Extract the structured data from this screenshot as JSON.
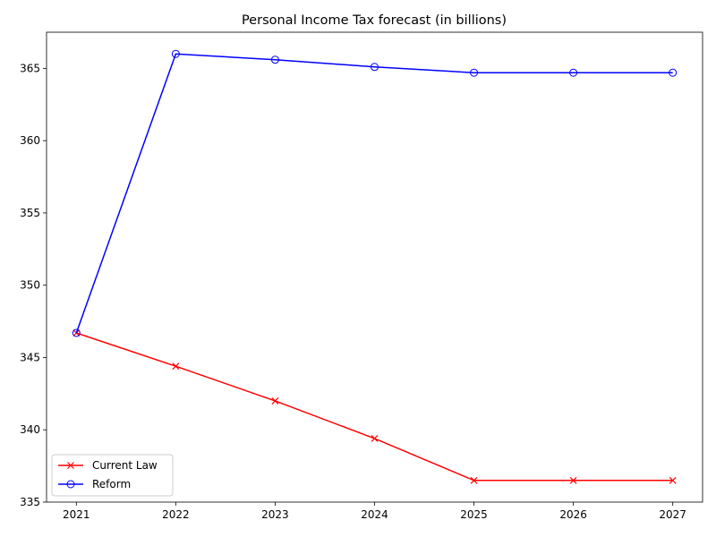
{
  "chart_data": {
    "type": "line",
    "title": "Personal Income Tax forecast (in billions)",
    "xlabel": "",
    "ylabel": "",
    "x": [
      2021,
      2022,
      2023,
      2024,
      2025,
      2026,
      2027
    ],
    "xlim": [
      2020.7,
      2027.3
    ],
    "ylim": [
      335,
      367.5
    ],
    "yticks": [
      335,
      340,
      345,
      350,
      355,
      360,
      365
    ],
    "grid": false,
    "legend_position": "lower-left",
    "series": [
      {
        "name": "Current Law",
        "color": "#ff0000",
        "marker": "x",
        "values": [
          346.7,
          344.4,
          342.0,
          339.4,
          336.5,
          336.5,
          336.5
        ]
      },
      {
        "name": "Reform",
        "color": "#0000ff",
        "marker": "o",
        "values": [
          346.7,
          366.0,
          365.6,
          365.1,
          364.7,
          364.7,
          364.7
        ]
      }
    ]
  }
}
